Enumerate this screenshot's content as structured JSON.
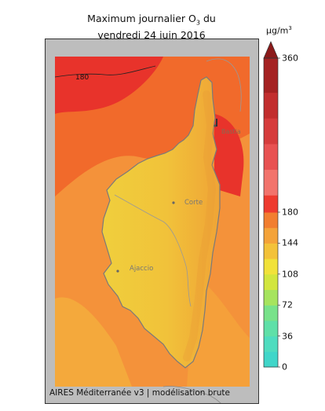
{
  "title": {
    "line1": "Maximum journalier O",
    "subscript": "3",
    "line1_end": " du",
    "line2": "vendredi 24 juin 2016"
  },
  "colorbar": {
    "unit": "µg/m",
    "unit_exp": "3",
    "ticks": [
      {
        "value": 360,
        "label": "360"
      },
      {
        "value": 180,
        "label": "180"
      },
      {
        "value": 144,
        "label": "144"
      },
      {
        "value": 108,
        "label": "108"
      },
      {
        "value": 72,
        "label": "72"
      },
      {
        "value": 36,
        "label": "36"
      },
      {
        "value": 0,
        "label": "0"
      }
    ],
    "range": [
      0,
      360
    ]
  },
  "map": {
    "contour_label": "180",
    "cities": [
      {
        "name": "Bastia"
      },
      {
        "name": "Corte"
      },
      {
        "name": "Ajaccio"
      }
    ]
  },
  "footer": "AIRES Méditerranée v3 | modélisation brute",
  "colors": {
    "high": "#e8332b",
    "orange": "#f16a2b",
    "light_orange": "#f4923a",
    "yellow_orange": "#f4b43c",
    "yellow": "#f2d039",
    "no_data": "#bdbdbd"
  }
}
